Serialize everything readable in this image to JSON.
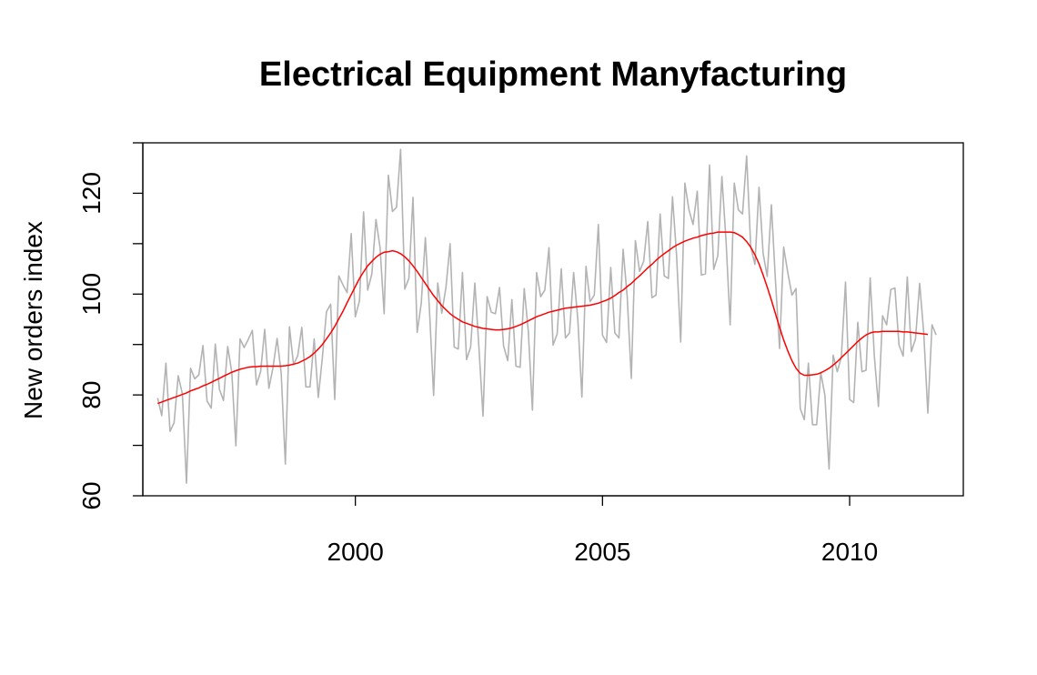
{
  "chart_data": {
    "type": "line",
    "title": "Electrical Equipment Manyfacturing",
    "xlabel": "",
    "ylabel": "New orders index",
    "xlim": [
      1995.7,
      2012.3
    ],
    "ylim": [
      60,
      130
    ],
    "xticks": [
      2000,
      2005,
      2010
    ],
    "yticks": [
      60,
      70,
      80,
      90,
      100,
      110,
      120,
      130
    ],
    "ytick_labels": [
      "60",
      "80",
      "100",
      "120"
    ],
    "x_start": 1996.0,
    "x_step": 0.08333,
    "grid": false,
    "series": [
      {
        "color": "#b3b3b3",
        "values": [
          79.4,
          75.9,
          86.3,
          72.8,
          74.5,
          83.8,
          80.2,
          62.5,
          85.3,
          83.2,
          84.0,
          89.8,
          78.8,
          77.4,
          90.1,
          81.1,
          78.9,
          89.6,
          84.5,
          69.9,
          91.1,
          89.4,
          91.0,
          92.8,
          82.0,
          84.6,
          93.0,
          81.3,
          85.4,
          91.2,
          84.4,
          66.3,
          93.5,
          86.0,
          87.8,
          93.4,
          81.6,
          81.6,
          91.1,
          79.5,
          87.4,
          96.5,
          98.0,
          79.1,
          103.6,
          101.8,
          100.3,
          112.0,
          95.5,
          98.7,
          116.3,
          100.8,
          104.0,
          114.8,
          109.2,
          96.1,
          123.6,
          116.4,
          117.2,
          128.7,
          101.0,
          103.1,
          119.2,
          92.4,
          98.2,
          111.2,
          96.9,
          79.9,
          102.2,
          96.2,
          101.4,
          110.0,
          89.5,
          89.1,
          104.3,
          87.0,
          89.5,
          102.2,
          89.4,
          75.8,
          99.5,
          96.4,
          96.1,
          101.3,
          89.7,
          86.8,
          98.9,
          85.7,
          85.5,
          101.1,
          92.6,
          77.0,
          104.3,
          99.5,
          100.8,
          109.2,
          89.9,
          92.1,
          105.0,
          91.3,
          92.3,
          104.3,
          95.0,
          79.6,
          105.5,
          98.5,
          99.8,
          113.8,
          91.9,
          90.4,
          105.3,
          92.3,
          91.3,
          108.9,
          99.5,
          83.3,
          110.6,
          104.5,
          106.5,
          114.4,
          99.3,
          99.8,
          115.9,
          103.6,
          103.1,
          119.3,
          107.6,
          90.5,
          122.0,
          116.7,
          113.8,
          120.4,
          103.8,
          104.0,
          125.6,
          104.9,
          107.6,
          123.3,
          110.4,
          93.9,
          122.0,
          116.7,
          115.9,
          127.4,
          109.3,
          105.9,
          121.2,
          108.1,
          103.5,
          117.7,
          102.6,
          89.2,
          109.3,
          104.2,
          99.8,
          101.1,
          77.3,
          75.1,
          86.3,
          74.1,
          74.1,
          84.4,
          80.0,
          65.3,
          87.9,
          84.6,
          87.5,
          102.4,
          79.1,
          78.5,
          94.4,
          84.6,
          84.9,
          103.2,
          87.7,
          77.7,
          95.7,
          93.9,
          100.9,
          101.2,
          89.9,
          87.7,
          103.4,
          88.6,
          91.1,
          102.1,
          92.3,
          76.4,
          93.9,
          91.9
        ]
      },
      {
        "color": "#ff0000",
        "values": [
          78.3,
          78.6,
          78.9,
          79.2,
          79.5,
          79.8,
          80.1,
          80.4,
          80.8,
          81.1,
          81.4,
          81.8,
          82.1,
          82.5,
          82.9,
          83.3,
          83.7,
          84.1,
          84.5,
          84.8,
          85.1,
          85.3,
          85.5,
          85.6,
          85.6,
          85.7,
          85.7,
          85.7,
          85.7,
          85.7,
          85.7,
          85.8,
          85.9,
          86.1,
          86.3,
          86.7,
          87.1,
          87.6,
          88.3,
          89.1,
          90.0,
          91.1,
          92.3,
          93.6,
          95.1,
          96.6,
          98.3,
          99.9,
          101.5,
          103.1,
          104.4,
          105.6,
          106.5,
          107.3,
          107.9,
          108.3,
          108.4,
          108.6,
          108.4,
          108.0,
          107.4,
          106.6,
          105.6,
          104.5,
          103.3,
          102.1,
          100.9,
          99.7,
          98.7,
          97.7,
          96.9,
          96.1,
          95.5,
          95.0,
          94.5,
          94.2,
          93.9,
          93.6,
          93.4,
          93.2,
          93.1,
          93.0,
          92.9,
          92.9,
          93.0,
          93.1,
          93.3,
          93.6,
          93.9,
          94.3,
          94.7,
          95.1,
          95.5,
          95.8,
          96.1,
          96.4,
          96.6,
          96.8,
          97.0,
          97.2,
          97.3,
          97.4,
          97.5,
          97.6,
          97.7,
          97.8,
          98.0,
          98.2,
          98.5,
          98.8,
          99.2,
          99.7,
          100.3,
          100.8,
          101.5,
          102.1,
          102.9,
          103.6,
          104.4,
          105.2,
          105.9,
          106.7,
          107.4,
          108.0,
          108.6,
          109.2,
          109.7,
          110.1,
          110.5,
          110.8,
          111.1,
          111.3,
          111.6,
          111.8,
          112.0,
          112.1,
          112.3,
          112.3,
          112.3,
          112.3,
          112.2,
          111.8,
          111.3,
          110.4,
          109.3,
          107.8,
          106.0,
          103.8,
          101.4,
          98.8,
          96.1,
          93.4,
          90.9,
          88.7,
          86.8,
          85.3,
          84.3,
          83.9,
          83.9,
          84.0,
          84.1,
          84.4,
          84.8,
          85.3,
          85.9,
          86.6,
          87.4,
          88.2,
          89.0,
          89.8,
          90.6,
          91.3,
          91.9,
          92.3,
          92.5,
          92.5,
          92.6,
          92.6,
          92.6,
          92.6,
          92.6,
          92.5,
          92.5,
          92.4,
          92.3,
          92.2,
          92.1,
          92.0
        ]
      }
    ]
  }
}
